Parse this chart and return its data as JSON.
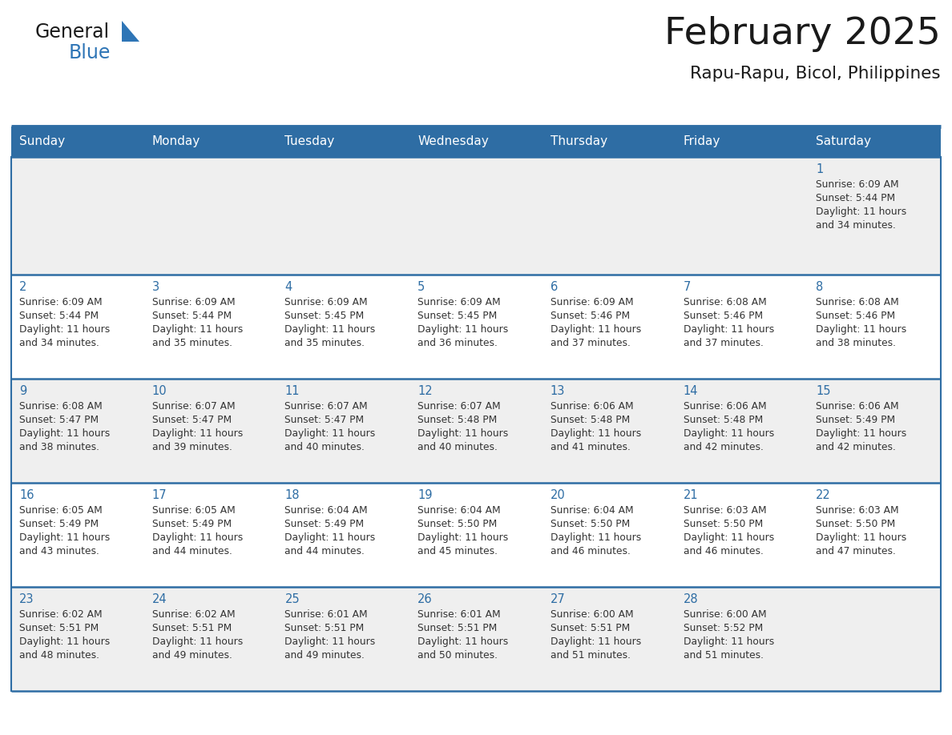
{
  "title": "February 2025",
  "subtitle": "Rapu-Rapu, Bicol, Philippines",
  "header_bg": "#2E6DA4",
  "header_text": "#FFFFFF",
  "cell_bg_light": "#EFEFEF",
  "cell_bg_white": "#FFFFFF",
  "border_color": "#2E6DA4",
  "day_names": [
    "Sunday",
    "Monday",
    "Tuesday",
    "Wednesday",
    "Thursday",
    "Friday",
    "Saturday"
  ],
  "title_color": "#1a1a1a",
  "subtitle_color": "#1a1a1a",
  "day_number_color": "#2E6DA4",
  "cell_text_color": "#333333",
  "logo_general_color": "#1a1a1a",
  "logo_blue_color": "#2E75B6",
  "days": [
    {
      "date": 1,
      "row": 0,
      "col": 6,
      "sunrise": "6:09 AM",
      "sunset": "5:44 PM",
      "daylight": "11 hours and 34 minutes."
    },
    {
      "date": 2,
      "row": 1,
      "col": 0,
      "sunrise": "6:09 AM",
      "sunset": "5:44 PM",
      "daylight": "11 hours and 34 minutes."
    },
    {
      "date": 3,
      "row": 1,
      "col": 1,
      "sunrise": "6:09 AM",
      "sunset": "5:44 PM",
      "daylight": "11 hours and 35 minutes."
    },
    {
      "date": 4,
      "row": 1,
      "col": 2,
      "sunrise": "6:09 AM",
      "sunset": "5:45 PM",
      "daylight": "11 hours and 35 minutes."
    },
    {
      "date": 5,
      "row": 1,
      "col": 3,
      "sunrise": "6:09 AM",
      "sunset": "5:45 PM",
      "daylight": "11 hours and 36 minutes."
    },
    {
      "date": 6,
      "row": 1,
      "col": 4,
      "sunrise": "6:09 AM",
      "sunset": "5:46 PM",
      "daylight": "11 hours and 37 minutes."
    },
    {
      "date": 7,
      "row": 1,
      "col": 5,
      "sunrise": "6:08 AM",
      "sunset": "5:46 PM",
      "daylight": "11 hours and 37 minutes."
    },
    {
      "date": 8,
      "row": 1,
      "col": 6,
      "sunrise": "6:08 AM",
      "sunset": "5:46 PM",
      "daylight": "11 hours and 38 minutes."
    },
    {
      "date": 9,
      "row": 2,
      "col": 0,
      "sunrise": "6:08 AM",
      "sunset": "5:47 PM",
      "daylight": "11 hours and 38 minutes."
    },
    {
      "date": 10,
      "row": 2,
      "col": 1,
      "sunrise": "6:07 AM",
      "sunset": "5:47 PM",
      "daylight": "11 hours and 39 minutes."
    },
    {
      "date": 11,
      "row": 2,
      "col": 2,
      "sunrise": "6:07 AM",
      "sunset": "5:47 PM",
      "daylight": "11 hours and 40 minutes."
    },
    {
      "date": 12,
      "row": 2,
      "col": 3,
      "sunrise": "6:07 AM",
      "sunset": "5:48 PM",
      "daylight": "11 hours and 40 minutes."
    },
    {
      "date": 13,
      "row": 2,
      "col": 4,
      "sunrise": "6:06 AM",
      "sunset": "5:48 PM",
      "daylight": "11 hours and 41 minutes."
    },
    {
      "date": 14,
      "row": 2,
      "col": 5,
      "sunrise": "6:06 AM",
      "sunset": "5:48 PM",
      "daylight": "11 hours and 42 minutes."
    },
    {
      "date": 15,
      "row": 2,
      "col": 6,
      "sunrise": "6:06 AM",
      "sunset": "5:49 PM",
      "daylight": "11 hours and 42 minutes."
    },
    {
      "date": 16,
      "row": 3,
      "col": 0,
      "sunrise": "6:05 AM",
      "sunset": "5:49 PM",
      "daylight": "11 hours and 43 minutes."
    },
    {
      "date": 17,
      "row": 3,
      "col": 1,
      "sunrise": "6:05 AM",
      "sunset": "5:49 PM",
      "daylight": "11 hours and 44 minutes."
    },
    {
      "date": 18,
      "row": 3,
      "col": 2,
      "sunrise": "6:04 AM",
      "sunset": "5:49 PM",
      "daylight": "11 hours and 44 minutes."
    },
    {
      "date": 19,
      "row": 3,
      "col": 3,
      "sunrise": "6:04 AM",
      "sunset": "5:50 PM",
      "daylight": "11 hours and 45 minutes."
    },
    {
      "date": 20,
      "row": 3,
      "col": 4,
      "sunrise": "6:04 AM",
      "sunset": "5:50 PM",
      "daylight": "11 hours and 46 minutes."
    },
    {
      "date": 21,
      "row": 3,
      "col": 5,
      "sunrise": "6:03 AM",
      "sunset": "5:50 PM",
      "daylight": "11 hours and 46 minutes."
    },
    {
      "date": 22,
      "row": 3,
      "col": 6,
      "sunrise": "6:03 AM",
      "sunset": "5:50 PM",
      "daylight": "11 hours and 47 minutes."
    },
    {
      "date": 23,
      "row": 4,
      "col": 0,
      "sunrise": "6:02 AM",
      "sunset": "5:51 PM",
      "daylight": "11 hours and 48 minutes."
    },
    {
      "date": 24,
      "row": 4,
      "col": 1,
      "sunrise": "6:02 AM",
      "sunset": "5:51 PM",
      "daylight": "11 hours and 49 minutes."
    },
    {
      "date": 25,
      "row": 4,
      "col": 2,
      "sunrise": "6:01 AM",
      "sunset": "5:51 PM",
      "daylight": "11 hours and 49 minutes."
    },
    {
      "date": 26,
      "row": 4,
      "col": 3,
      "sunrise": "6:01 AM",
      "sunset": "5:51 PM",
      "daylight": "11 hours and 50 minutes."
    },
    {
      "date": 27,
      "row": 4,
      "col": 4,
      "sunrise": "6:00 AM",
      "sunset": "5:51 PM",
      "daylight": "11 hours and 51 minutes."
    },
    {
      "date": 28,
      "row": 4,
      "col": 5,
      "sunrise": "6:00 AM",
      "sunset": "5:52 PM",
      "daylight": "11 hours and 51 minutes."
    }
  ]
}
